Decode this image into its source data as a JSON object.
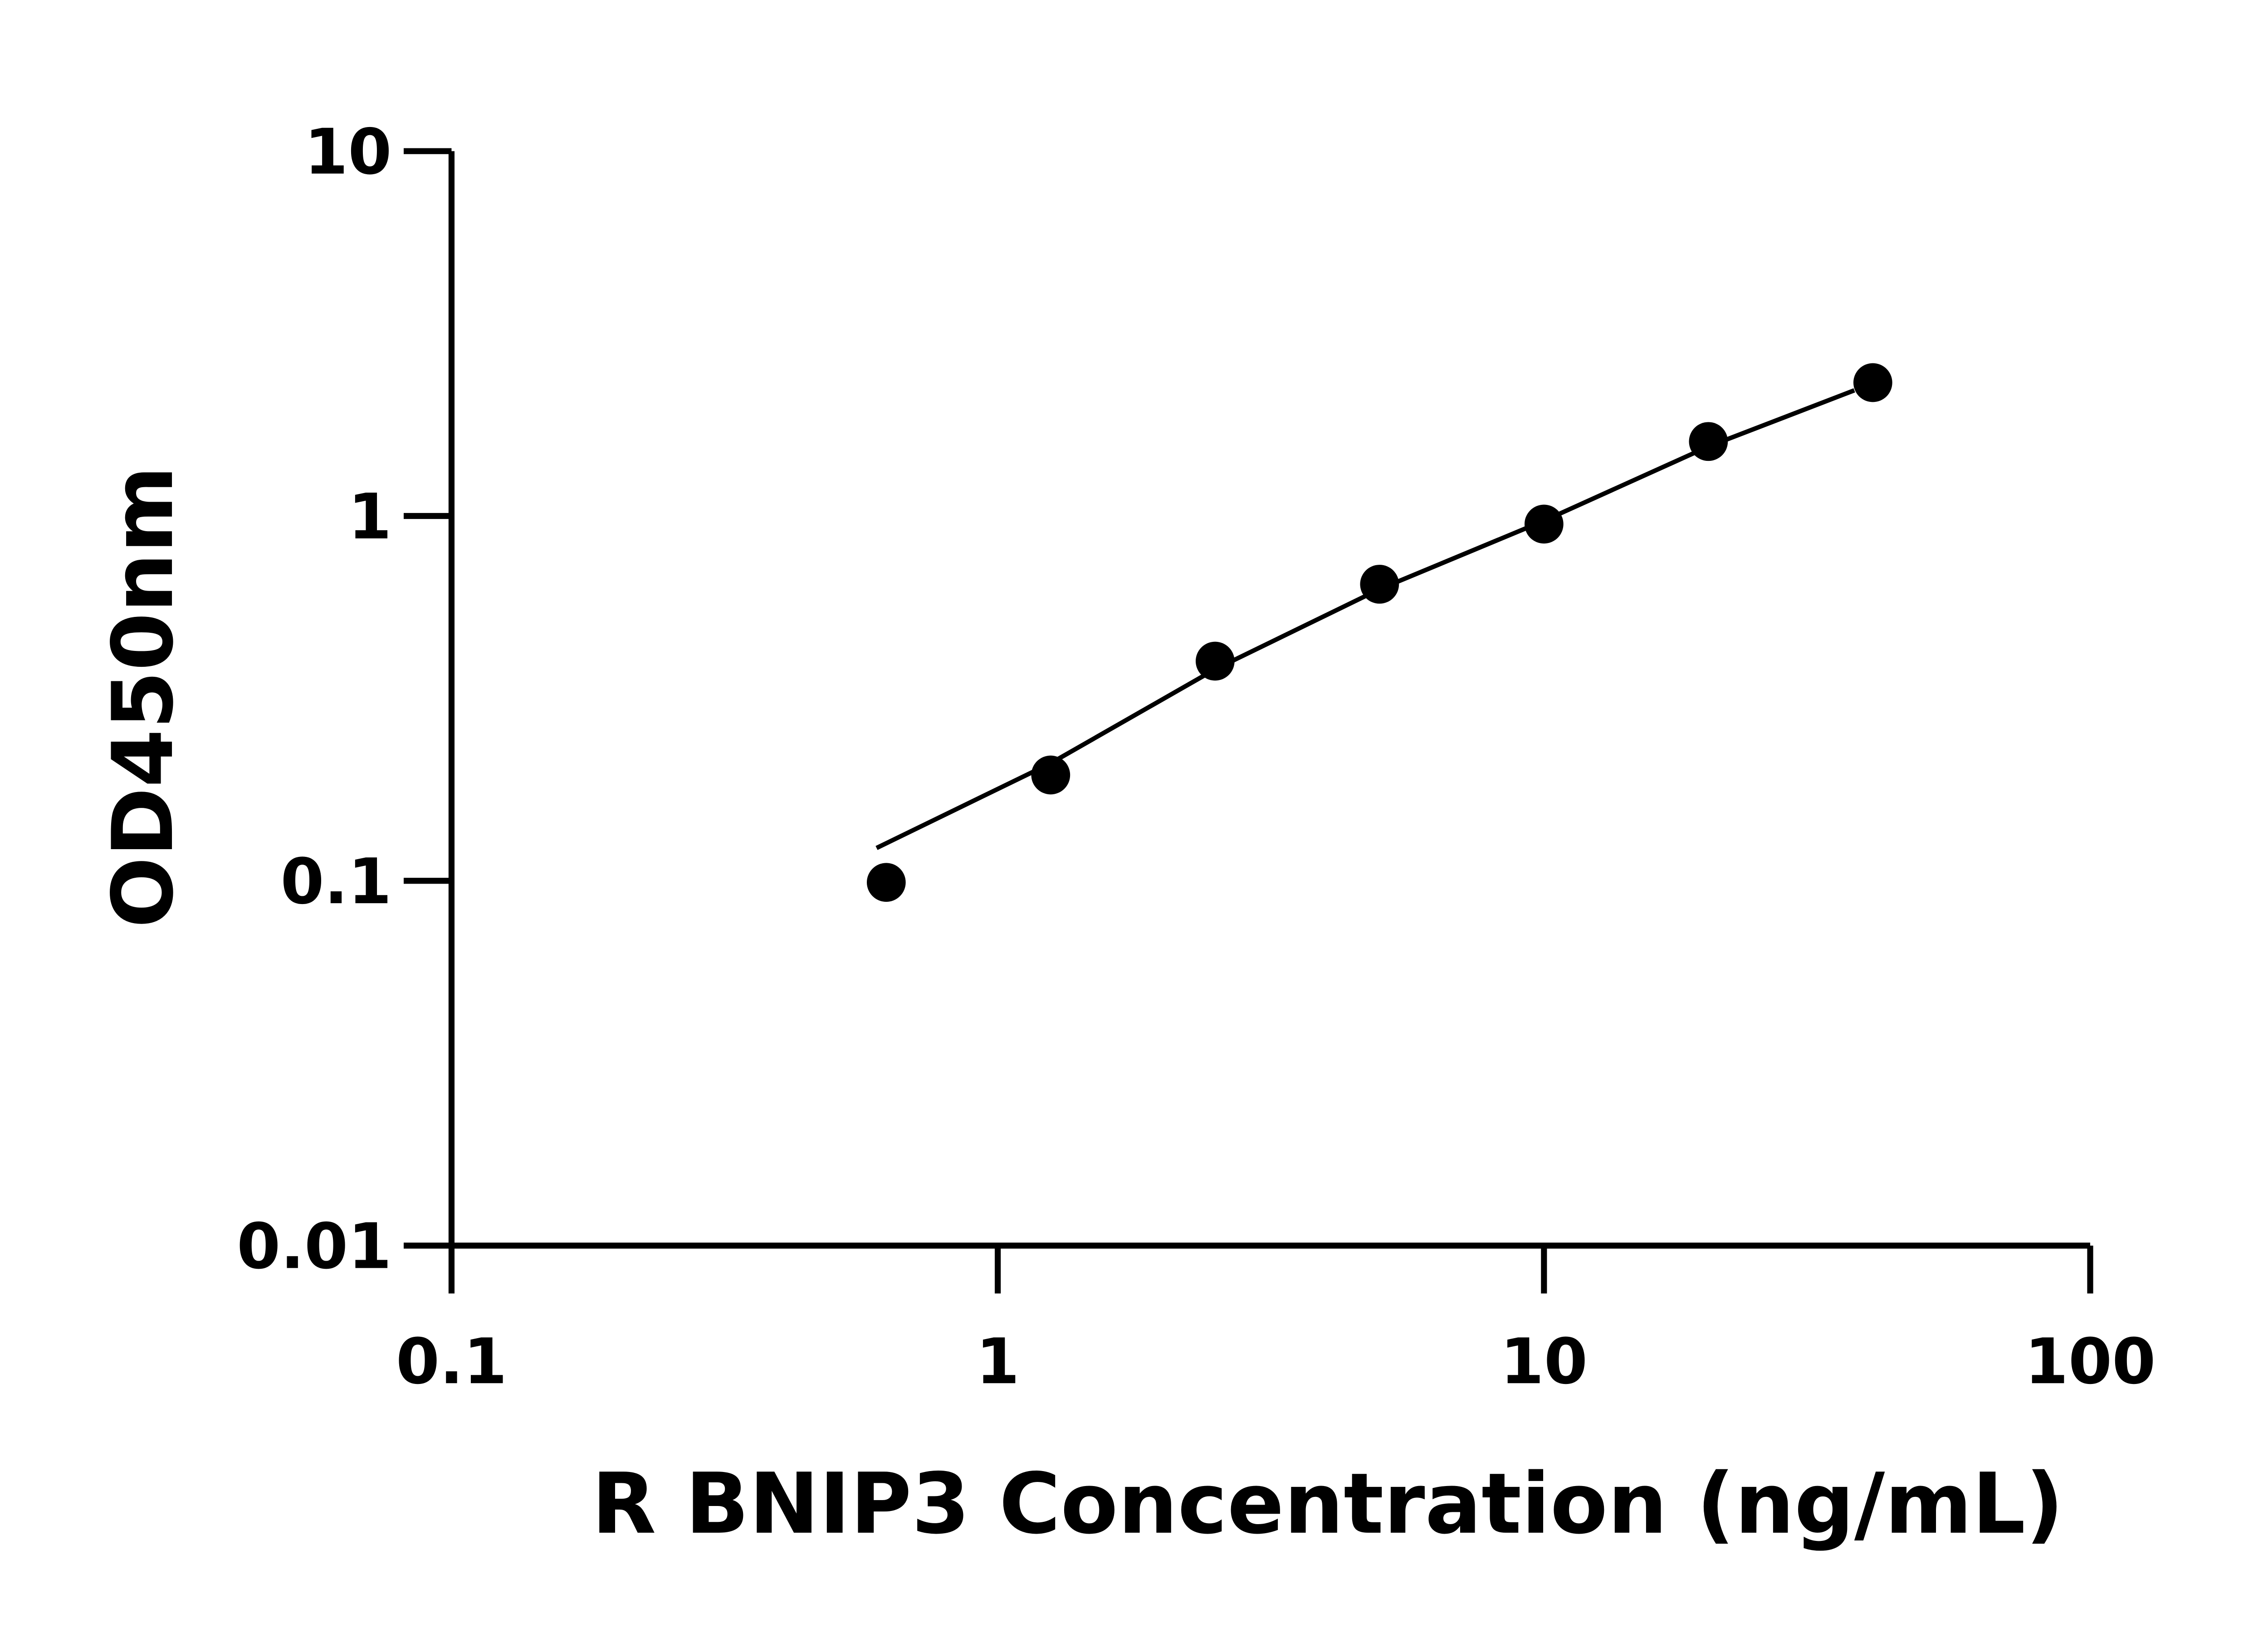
{
  "chart_data": {
    "type": "scatter",
    "title": "",
    "xlabel": "R BNIP3 Concentration (ng/mL)",
    "ylabel": "OD450nm",
    "xscale": "log",
    "yscale": "log",
    "xlim": [
      0.1,
      100
    ],
    "ylim": [
      0.01,
      10
    ],
    "xticks": [
      "0.1",
      "1",
      "10",
      "100"
    ],
    "yticks": [
      "0.01",
      "0.1",
      "1",
      "10"
    ],
    "grid": false,
    "points": [
      {
        "x": 0.625,
        "y": 0.099
      },
      {
        "x": 1.25,
        "y": 0.195
      },
      {
        "x": 2.5,
        "y": 0.4
      },
      {
        "x": 5,
        "y": 0.65
      },
      {
        "x": 10,
        "y": 0.95
      },
      {
        "x": 20,
        "y": 1.6
      },
      {
        "x": 40,
        "y": 2.32
      }
    ],
    "fit_curve": [
      [
        0.6,
        0.123
      ],
      [
        1.25,
        0.21
      ],
      [
        2.5,
        0.38
      ],
      [
        5,
        0.63
      ],
      [
        10,
        0.97
      ],
      [
        20,
        1.55
      ],
      [
        37,
        2.21
      ]
    ],
    "colors": {
      "points": "#000000",
      "line": "#000000"
    }
  }
}
